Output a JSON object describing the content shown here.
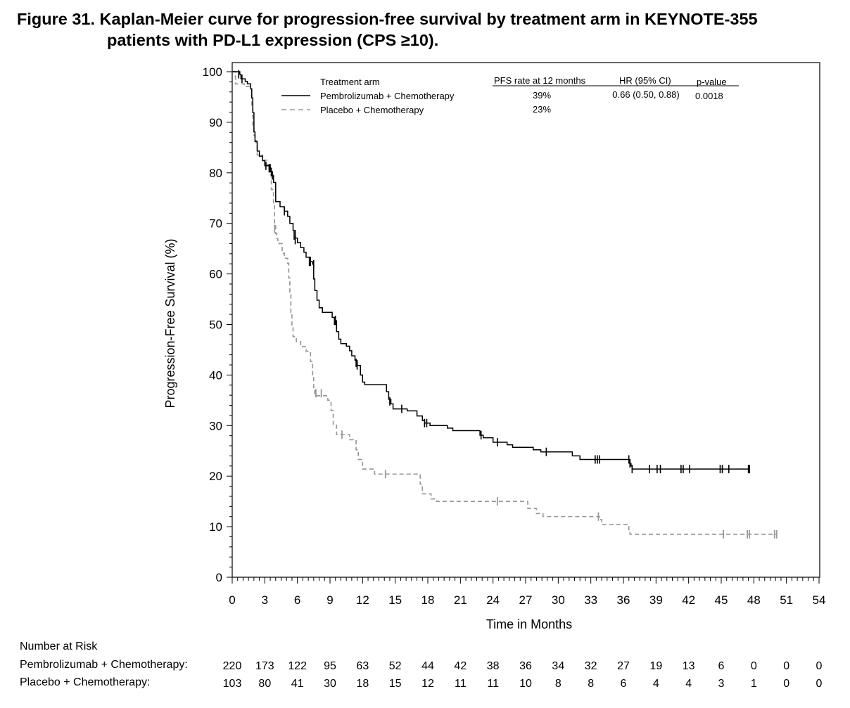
{
  "figure": {
    "title_line1": "Figure 31. Kaplan-Meier curve for progression-free survival by treatment arm in KEYNOTE-355",
    "title_line2": "patients with PD-L1 expression (CPS ≥10)."
  },
  "chart_data": {
    "type": "line",
    "xlabel": "Time in Months",
    "ylabel": "Progression-Free Survival (%)",
    "xlim": [
      0,
      54
    ],
    "ylim": [
      0,
      100
    ],
    "x_ticks": [
      0,
      3,
      6,
      9,
      12,
      15,
      18,
      21,
      24,
      27,
      30,
      33,
      36,
      39,
      42,
      45,
      48,
      51,
      54
    ],
    "y_ticks": [
      0,
      10,
      20,
      30,
      40,
      50,
      60,
      70,
      80,
      90,
      100
    ],
    "grid": false,
    "legend": {
      "placement": "top-right",
      "header": "Treatment arm",
      "col_pfs": "PFS rate at 12 months",
      "col_hr": "HR (95% CI)",
      "col_p": "p-value"
    },
    "series": [
      {
        "name": "Pembrolizumab + Chemotherapy",
        "color": "#000000",
        "dash": "solid",
        "pfs_rate_12m": "39%",
        "hr": "0.66 (0.50, 0.88)",
        "p_value": "0.0018",
        "points": [
          [
            0,
            100
          ],
          [
            0.7,
            99.5
          ],
          [
            0.8,
            98.6
          ],
          [
            1.2,
            98.1
          ],
          [
            1.4,
            97.6
          ],
          [
            1.7,
            96.6
          ],
          [
            1.8,
            94.8
          ],
          [
            1.9,
            91.9
          ],
          [
            2,
            88.1
          ],
          [
            2.1,
            86.2
          ],
          [
            2.3,
            84.3
          ],
          [
            2.5,
            83.3
          ],
          [
            2.8,
            82.4
          ],
          [
            3,
            81.4
          ],
          [
            3.4,
            80.9
          ],
          [
            3.6,
            79.5
          ],
          [
            3.8,
            78.1
          ],
          [
            4,
            74.3
          ],
          [
            4.4,
            73.3
          ],
          [
            4.8,
            72.4
          ],
          [
            5.1,
            71.4
          ],
          [
            5.3,
            70
          ],
          [
            5.6,
            68.6
          ],
          [
            5.8,
            67.1
          ],
          [
            6,
            66.2
          ],
          [
            6.3,
            65.2
          ],
          [
            6.6,
            64.3
          ],
          [
            6.8,
            63.3
          ],
          [
            7.2,
            62.4
          ],
          [
            7.4,
            61.9
          ],
          [
            7.5,
            59
          ],
          [
            7.6,
            56.7
          ],
          [
            7.8,
            54.8
          ],
          [
            8,
            53.3
          ],
          [
            8.3,
            52.4
          ],
          [
            9.2,
            51.4
          ],
          [
            9.4,
            50
          ],
          [
            9.6,
            48.6
          ],
          [
            9.8,
            47.1
          ],
          [
            10,
            46.2
          ],
          [
            10.5,
            45.7
          ],
          [
            10.8,
            44.8
          ],
          [
            11,
            43.8
          ],
          [
            11.3,
            42.9
          ],
          [
            11.5,
            41.9
          ],
          [
            11.8,
            40
          ],
          [
            12,
            38.6
          ],
          [
            12.2,
            38.1
          ],
          [
            14.2,
            36.7
          ],
          [
            14.4,
            35.2
          ],
          [
            14.6,
            34.3
          ],
          [
            14.8,
            33.3
          ],
          [
            16.1,
            32.9
          ],
          [
            17,
            31.9
          ],
          [
            17.5,
            31
          ],
          [
            17.7,
            30.5
          ],
          [
            18.2,
            30
          ],
          [
            19.8,
            29.5
          ],
          [
            20.3,
            29
          ],
          [
            22.8,
            28.1
          ],
          [
            23.1,
            27.6
          ],
          [
            24,
            26.7
          ],
          [
            25.3,
            26.2
          ],
          [
            25.8,
            25.7
          ],
          [
            27.7,
            25.2
          ],
          [
            28.4,
            24.8
          ],
          [
            31.3,
            24
          ],
          [
            32,
            23.3
          ],
          [
            36.6,
            22.5
          ],
          [
            36.7,
            22
          ],
          [
            36.8,
            21.4
          ],
          [
            47.6,
            21.4
          ]
        ],
        "censor": [
          [
            0.6,
            99.5
          ],
          [
            0.9,
            98.6
          ],
          [
            3.1,
            81.4
          ],
          [
            3.4,
            80.9
          ],
          [
            3.5,
            80.9
          ],
          [
            3.7,
            79.5
          ],
          [
            4.8,
            72.4
          ],
          [
            5.7,
            67.6
          ],
          [
            5.8,
            66.7
          ],
          [
            7.1,
            62.4
          ],
          [
            7.2,
            62.4
          ],
          [
            7.5,
            61.9
          ],
          [
            9.5,
            50.9
          ],
          [
            9.6,
            50
          ],
          [
            11.4,
            42.4
          ],
          [
            11.5,
            41.9
          ],
          [
            14.5,
            34.8
          ],
          [
            15.6,
            33.3
          ],
          [
            17.7,
            30.5
          ],
          [
            17.9,
            30.5
          ],
          [
            22.9,
            28.1
          ],
          [
            24.4,
            26.7
          ],
          [
            28.9,
            24.8
          ],
          [
            33.4,
            23.3
          ],
          [
            33.6,
            23.3
          ],
          [
            33.8,
            23.3
          ],
          [
            36.5,
            23.3
          ],
          [
            36.6,
            22.5
          ],
          [
            36.8,
            21.4
          ],
          [
            38.4,
            21.4
          ],
          [
            39.1,
            21.4
          ],
          [
            39.4,
            21.4
          ],
          [
            41.3,
            21.4
          ],
          [
            41.5,
            21.4
          ],
          [
            42.1,
            21.4
          ],
          [
            44.9,
            21.4
          ],
          [
            45.1,
            21.4
          ],
          [
            45.7,
            21.4
          ],
          [
            47.5,
            21.4
          ],
          [
            47.6,
            21.4
          ]
        ]
      },
      {
        "name": "Placebo + Chemotherapy",
        "color": "#999999",
        "dash": "dashed",
        "pfs_rate_12m": "23%",
        "points": [
          [
            0,
            100
          ],
          [
            0.3,
            97.6
          ],
          [
            1.1,
            97.1
          ],
          [
            1.7,
            96.6
          ],
          [
            1.8,
            93.2
          ],
          [
            1.9,
            89.3
          ],
          [
            2,
            87.4
          ],
          [
            2.1,
            86.4
          ],
          [
            2.2,
            85.4
          ],
          [
            2.3,
            83.5
          ],
          [
            2.8,
            82.5
          ],
          [
            3.2,
            81.6
          ],
          [
            3.4,
            80.6
          ],
          [
            3.5,
            79.6
          ],
          [
            3.6,
            76.7
          ],
          [
            3.8,
            73.8
          ],
          [
            3.9,
            69.9
          ],
          [
            4,
            68
          ],
          [
            4.1,
            67
          ],
          [
            4.2,
            66
          ],
          [
            4.6,
            64.1
          ],
          [
            4.8,
            63.1
          ],
          [
            5.1,
            62.1
          ],
          [
            5.2,
            59.2
          ],
          [
            5.3,
            56.3
          ],
          [
            5.4,
            52.4
          ],
          [
            5.5,
            49.5
          ],
          [
            5.6,
            47.6
          ],
          [
            5.9,
            46.6
          ],
          [
            6.3,
            45.6
          ],
          [
            6.8,
            44.7
          ],
          [
            7.2,
            42.7
          ],
          [
            7.4,
            39.8
          ],
          [
            7.5,
            36.9
          ],
          [
            7.6,
            35.9
          ],
          [
            8.8,
            35
          ],
          [
            9.1,
            33
          ],
          [
            9.3,
            30.1
          ],
          [
            9.6,
            28.2
          ],
          [
            10.8,
            27.2
          ],
          [
            11.4,
            25.2
          ],
          [
            11.6,
            23.3
          ],
          [
            12,
            21.4
          ],
          [
            12.3,
            21.4
          ],
          [
            13.1,
            20.4
          ],
          [
            17.3,
            18.4
          ],
          [
            17.5,
            16.5
          ],
          [
            18.3,
            15.5
          ],
          [
            18.8,
            15
          ],
          [
            27.2,
            13.6
          ],
          [
            28,
            12.6
          ],
          [
            28.6,
            12
          ],
          [
            33.8,
            11.4
          ],
          [
            34,
            10.4
          ],
          [
            36.3,
            10.4
          ],
          [
            36.5,
            9.4
          ],
          [
            36.6,
            8.5
          ],
          [
            50.1,
            8.5
          ]
        ],
        "censor": [
          [
            3.9,
            68.9
          ],
          [
            7.7,
            36.4
          ],
          [
            8.2,
            36.4
          ],
          [
            10.1,
            28.2
          ],
          [
            14.1,
            20.4
          ],
          [
            24.4,
            15
          ],
          [
            33.7,
            12
          ],
          [
            45.2,
            8.5
          ],
          [
            47.4,
            8.5
          ],
          [
            47.6,
            8.5
          ],
          [
            49.9,
            8.5
          ],
          [
            50.1,
            8.5
          ]
        ]
      }
    ]
  },
  "risk_table": {
    "heading": "Number at Risk",
    "rows": [
      {
        "label": "Pembrolizumab + Chemotherapy:",
        "values": [
          220,
          173,
          122,
          95,
          63,
          52,
          44,
          42,
          38,
          36,
          34,
          32,
          27,
          19,
          13,
          6,
          0,
          0,
          0
        ]
      },
      {
        "label": "Placebo + Chemotherapy:",
        "values": [
          103,
          80,
          41,
          30,
          18,
          15,
          12,
          11,
          11,
          10,
          8,
          8,
          6,
          4,
          4,
          3,
          1,
          0,
          0
        ]
      }
    ]
  }
}
